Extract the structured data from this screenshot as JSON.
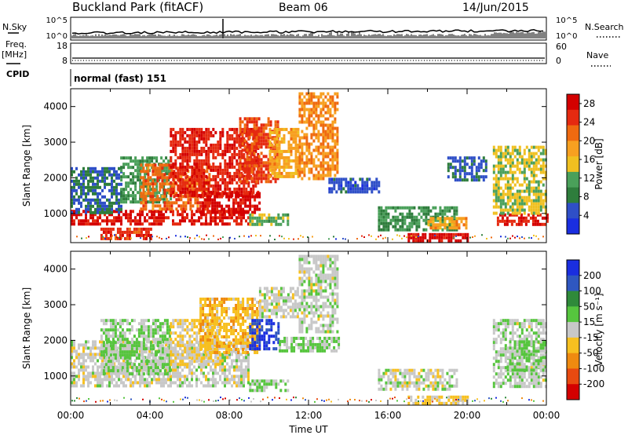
{
  "header": {
    "station": "Buckland Park (fitACF)",
    "beam": "Beam 06",
    "date": "14/Jun/2015"
  },
  "status_panel": {
    "nsky_label": "N.Sky",
    "nsearch_label": "N.Search",
    "noise_ticks": [
      "10^5",
      "10^0"
    ],
    "freq_label": "Freq.",
    "freq_unit": "[MHz]",
    "freq_ticks": [
      "18",
      "8"
    ],
    "nave_label": "Nave",
    "nave_ticks": [
      "60",
      "0"
    ],
    "cpid_label": "CPID",
    "cpid_value": "normal (fast) 151"
  },
  "colors": {
    "power": [
      "#1a2ee0",
      "#2f4fc7",
      "#2e7d3c",
      "#4aa05a",
      "#f0c020",
      "#f7a020",
      "#ef6a10",
      "#e52a10",
      "#d40000"
    ],
    "velocity": [
      "#1a2ee0",
      "#2f57c0",
      "#2f8a3a",
      "#56c53e",
      "#c8c8c8",
      "#f7c020",
      "#ef8a10",
      "#e84a10",
      "#d40000"
    ]
  },
  "chart_data": [
    {
      "type": "heatmap",
      "name": "power",
      "xlabel": "",
      "ylabel": "Slant Range [km]",
      "xlim": [
        0,
        24
      ],
      "ylim": [
        180,
        4500
      ],
      "yticks": [
        1000,
        2000,
        3000,
        4000
      ],
      "colorbar": {
        "label": "Power [dB]",
        "ticks": [
          4,
          8,
          12,
          16,
          20,
          24,
          28
        ],
        "range": [
          0,
          30
        ]
      },
      "regions": [
        {
          "t0": 0.0,
          "t1": 9.0,
          "r0": 700,
          "r1": 1100,
          "value": 27
        },
        {
          "t0": 0.0,
          "t1": 2.5,
          "r0": 1000,
          "r1": 2300,
          "value": 7
        },
        {
          "t0": 2.5,
          "t1": 5.0,
          "r0": 1300,
          "r1": 2600,
          "value": 11
        },
        {
          "t0": 1.5,
          "t1": 4.0,
          "r0": 250,
          "r1": 600,
          "value": 25
        },
        {
          "t0": 3.5,
          "t1": 7.0,
          "r0": 1100,
          "r1": 2400,
          "value": 22
        },
        {
          "t0": 5.0,
          "t1": 9.5,
          "r0": 1500,
          "r1": 3400,
          "value": 26
        },
        {
          "t0": 6.5,
          "t1": 9.5,
          "r0": 1000,
          "r1": 1600,
          "value": 28
        },
        {
          "t0": 8.5,
          "t1": 10.5,
          "r0": 1900,
          "r1": 3700,
          "value": 24
        },
        {
          "t0": 10.0,
          "t1": 11.5,
          "r0": 2000,
          "r1": 3400,
          "value": 18
        },
        {
          "t0": 11.5,
          "t1": 13.5,
          "r0": 2000,
          "r1": 4400,
          "value": 20
        },
        {
          "t0": 13.0,
          "t1": 15.5,
          "r0": 1600,
          "r1": 2000,
          "value": 5
        },
        {
          "t0": 9.0,
          "t1": 11.0,
          "r0": 700,
          "r1": 1000,
          "value": 12
        },
        {
          "t0": 15.5,
          "t1": 19.5,
          "r0": 500,
          "r1": 1200,
          "value": 10
        },
        {
          "t0": 17.0,
          "t1": 20.0,
          "r0": 200,
          "r1": 450,
          "value": 28
        },
        {
          "t0": 18.0,
          "t1": 20.0,
          "r0": 600,
          "r1": 900,
          "value": 18
        },
        {
          "t0": 19.0,
          "t1": 21.0,
          "r0": 1900,
          "r1": 2600,
          "value": 6
        },
        {
          "t0": 21.5,
          "t1": 24.0,
          "r0": 700,
          "r1": 1000,
          "value": 26
        },
        {
          "t0": 21.3,
          "t1": 24.0,
          "r0": 1000,
          "r1": 2900,
          "value": 14
        }
      ]
    },
    {
      "type": "heatmap",
      "name": "velocity",
      "xlabel": "Time UT",
      "ylabel": "Slant Range [km]",
      "xlim": [
        0,
        24
      ],
      "ylim": [
        180,
        4500
      ],
      "xticks": [
        "00:00",
        "04:00",
        "08:00",
        "12:00",
        "16:00",
        "20:00",
        "00:00"
      ],
      "yticks": [
        1000,
        2000,
        3000,
        4000
      ],
      "colorbar": {
        "label": "Velocity [m s⁻¹]",
        "ticks": [
          200,
          100,
          50,
          15,
          -15,
          -50,
          -100,
          -200
        ],
        "range": [
          -250,
          250
        ]
      },
      "regions": [
        {
          "t0": 0.0,
          "t1": 9.0,
          "r0": 700,
          "r1": 2000,
          "value": 0
        },
        {
          "t0": 1.5,
          "t1": 5.0,
          "r0": 1100,
          "r1": 2600,
          "value": 30
        },
        {
          "t0": 5.0,
          "t1": 7.5,
          "r0": 1300,
          "r1": 2600,
          "value": -30
        },
        {
          "t0": 6.5,
          "t1": 9.5,
          "r0": 1700,
          "r1": 3200,
          "value": -60
        },
        {
          "t0": 9.0,
          "t1": 10.5,
          "r0": 1800,
          "r1": 2600,
          "value": 200
        },
        {
          "t0": 9.5,
          "t1": 11.5,
          "r0": 2700,
          "r1": 3500,
          "value": 0
        },
        {
          "t0": 10.5,
          "t1": 13.5,
          "r0": 1700,
          "r1": 2100,
          "value": 40
        },
        {
          "t0": 11.5,
          "t1": 13.5,
          "r0": 2200,
          "r1": 4400,
          "value": 5
        },
        {
          "t0": 9.0,
          "t1": 11.0,
          "r0": 600,
          "r1": 900,
          "value": 40
        },
        {
          "t0": 15.5,
          "t1": 19.5,
          "r0": 600,
          "r1": 1200,
          "value": 0
        },
        {
          "t0": 17.0,
          "t1": 20.0,
          "r0": 200,
          "r1": 450,
          "value": -30
        },
        {
          "t0": 21.3,
          "t1": 24.0,
          "r0": 700,
          "r1": 2600,
          "value": 10
        },
        {
          "t0": 22.0,
          "t1": 24.0,
          "r0": 1200,
          "r1": 2000,
          "value": 40
        }
      ]
    }
  ]
}
